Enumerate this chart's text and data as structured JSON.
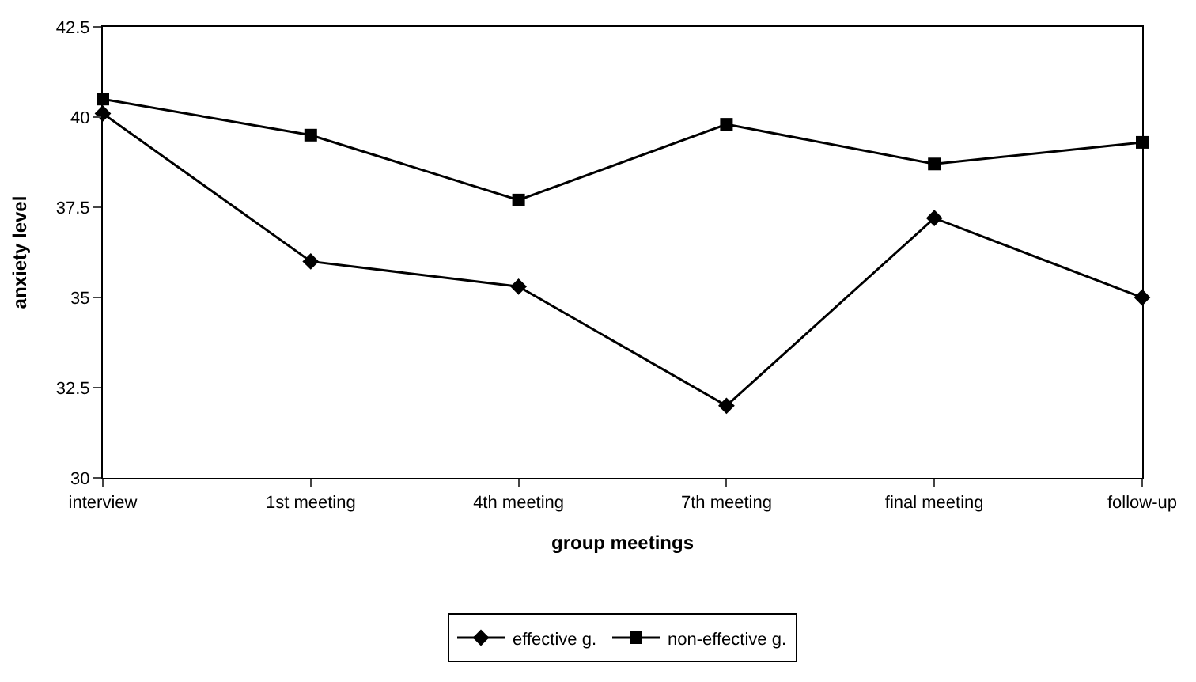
{
  "chart_data": {
    "type": "line",
    "xlabel": "group meetings",
    "ylabel": "anxiety level",
    "categories": [
      "interview",
      "1st meeting",
      "4th meeting",
      "7th meeting",
      "final meeting",
      "follow-up"
    ],
    "series": [
      {
        "name": "effective g.",
        "color": "#000000",
        "marker": "diamond",
        "values": [
          40.1,
          36.0,
          35.3,
          32.0,
          37.2,
          35.0
        ]
      },
      {
        "name": "non-effective g.",
        "color": "#000000",
        "marker": "square",
        "values": [
          40.5,
          39.5,
          37.7,
          39.8,
          38.7,
          39.3
        ]
      }
    ],
    "ylim": [
      30,
      42.5
    ],
    "yticks": [
      30,
      32.5,
      35,
      37.5,
      40,
      42.5
    ],
    "legend": "bottom",
    "line_style": "solid"
  }
}
